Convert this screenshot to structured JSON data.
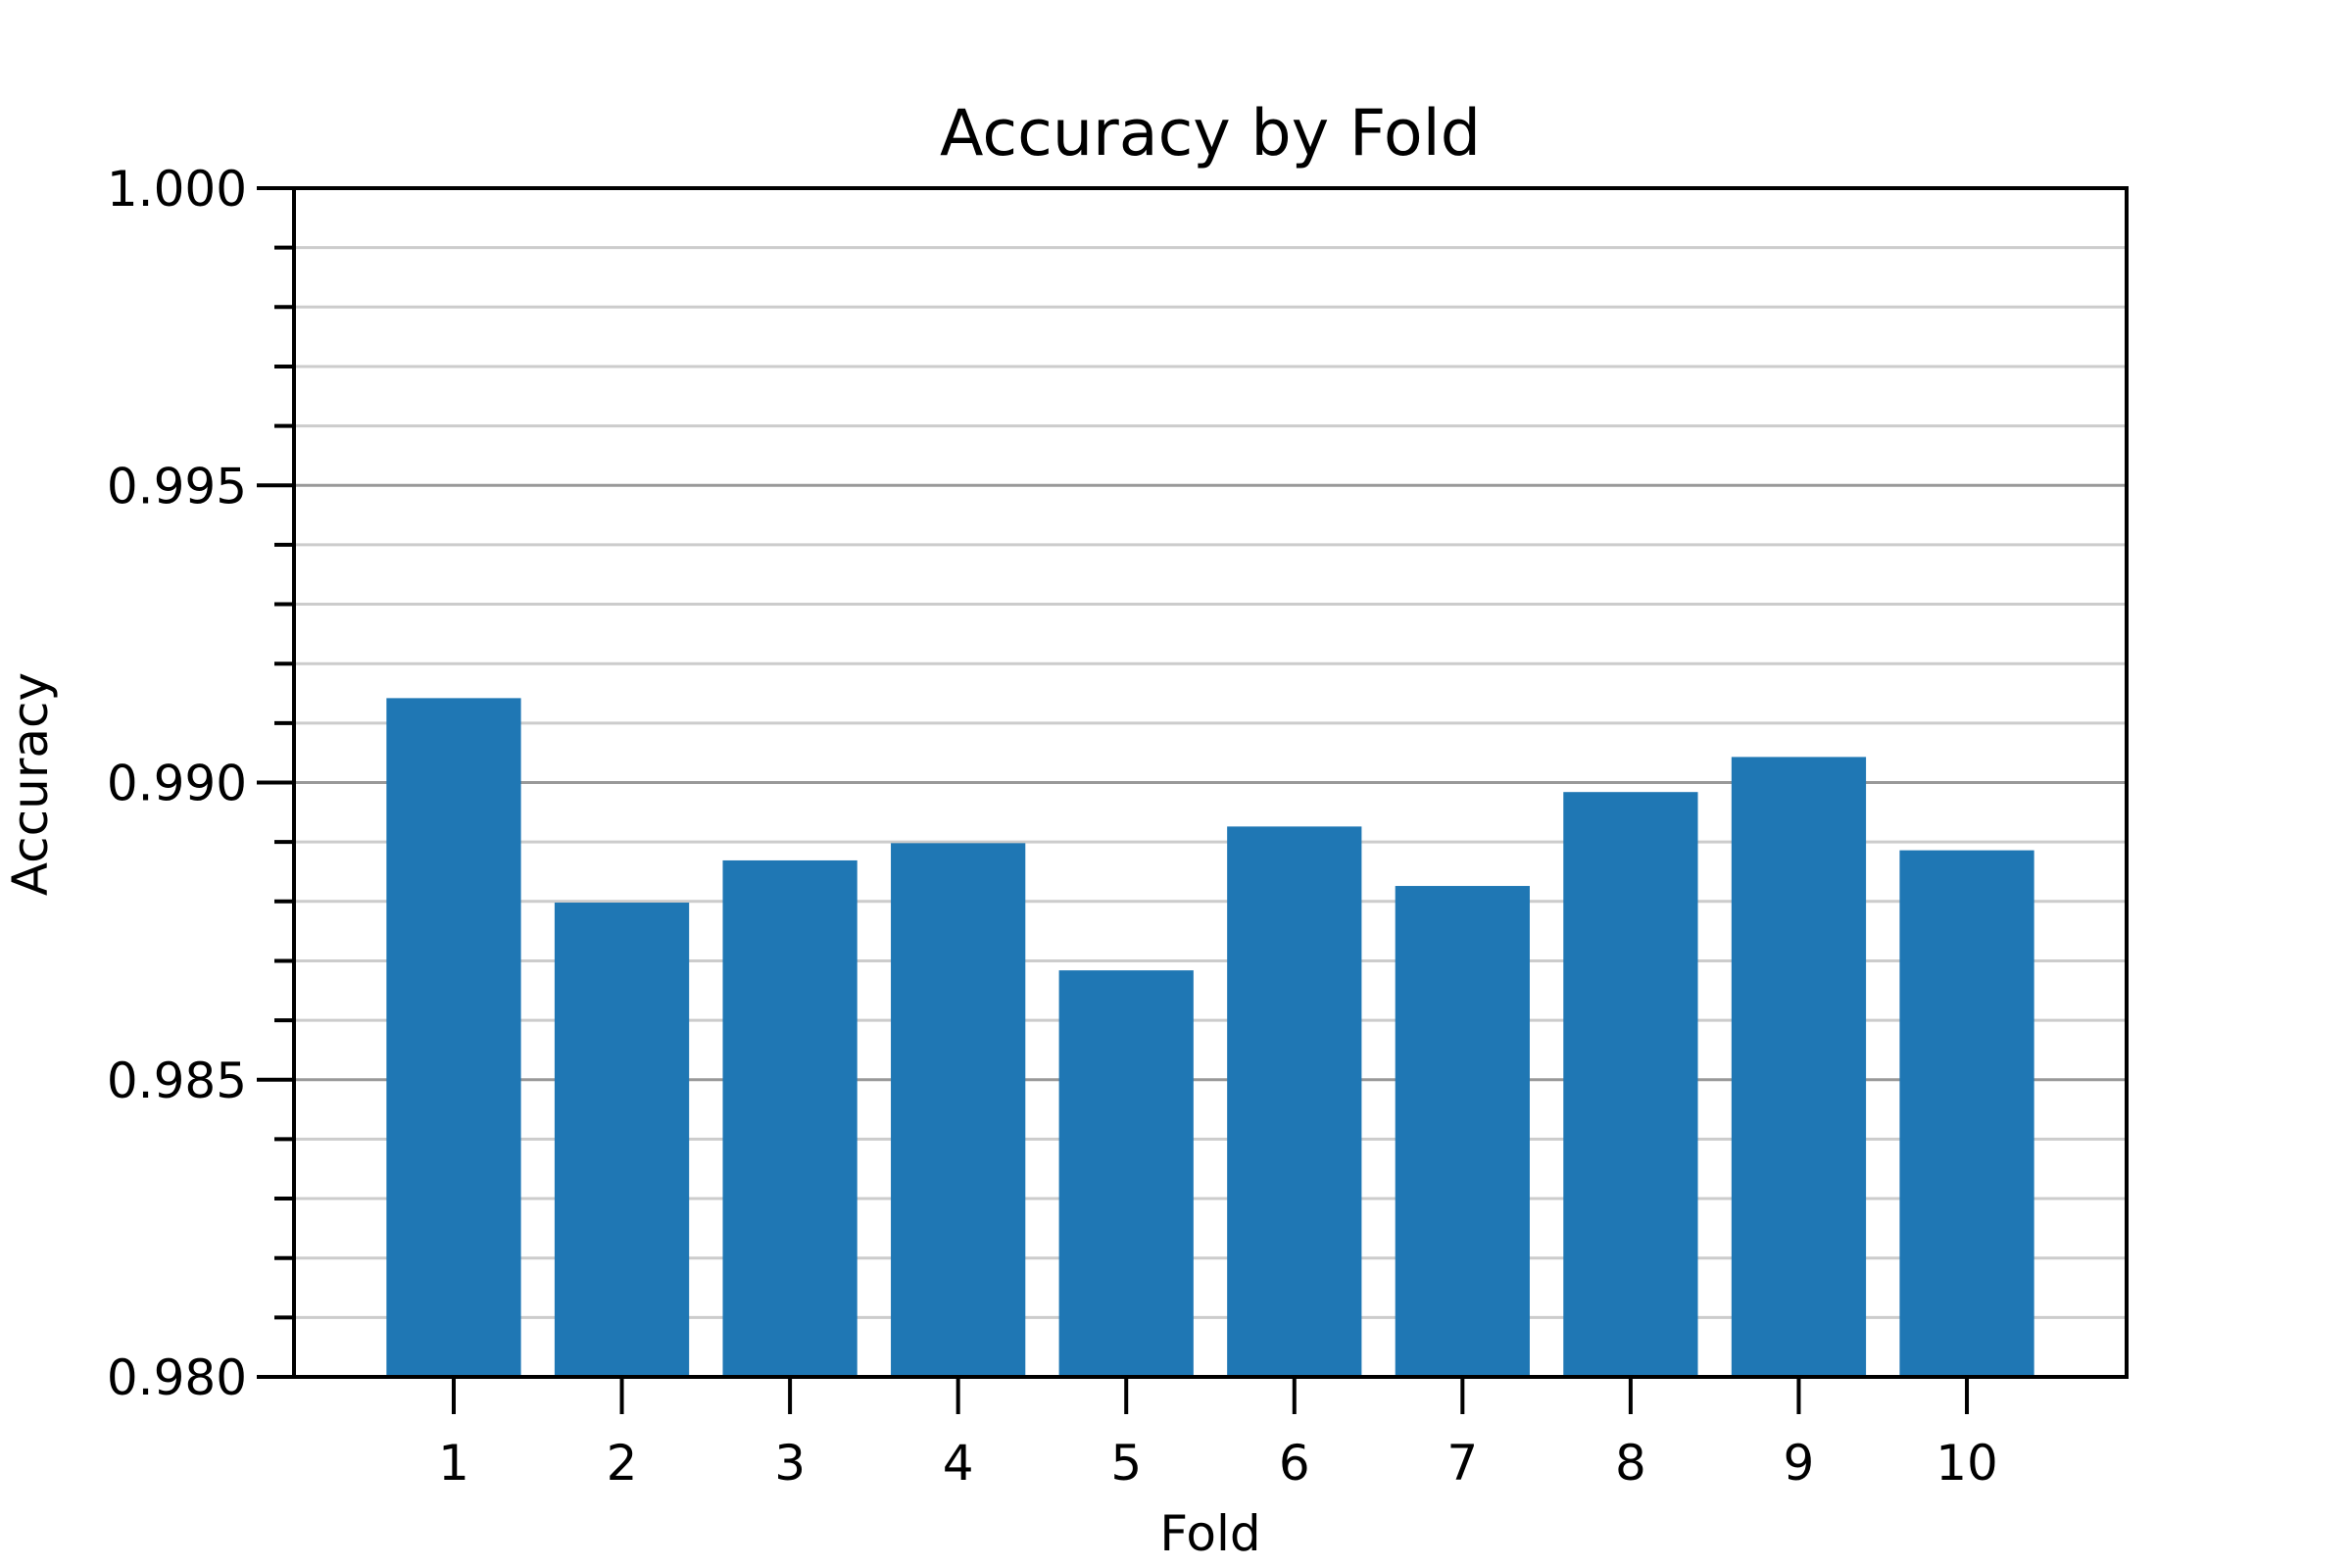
{
  "chart_data": {
    "type": "bar",
    "title": "Accuracy by Fold",
    "xlabel": "Fold",
    "ylabel": "Accuracy",
    "categories": [
      "1",
      "2",
      "3",
      "4",
      "5",
      "6",
      "7",
      "8",
      "9",
      "10"
    ],
    "values": [
      0.99142,
      0.98798,
      0.98869,
      0.98898,
      0.98684,
      0.98926,
      0.98826,
      0.98984,
      0.99043,
      0.98886
    ],
    "ylim": [
      0.98,
      1.0
    ],
    "yticks": [
      "0.980",
      "0.985",
      "0.990",
      "0.995",
      "1.000"
    ],
    "yticks_values": [
      0.98,
      0.985,
      0.99,
      0.995,
      1.0
    ],
    "minor_tick_step": 0.001,
    "grid": "y",
    "legend": "none",
    "bar_color": "#1f77b4"
  }
}
